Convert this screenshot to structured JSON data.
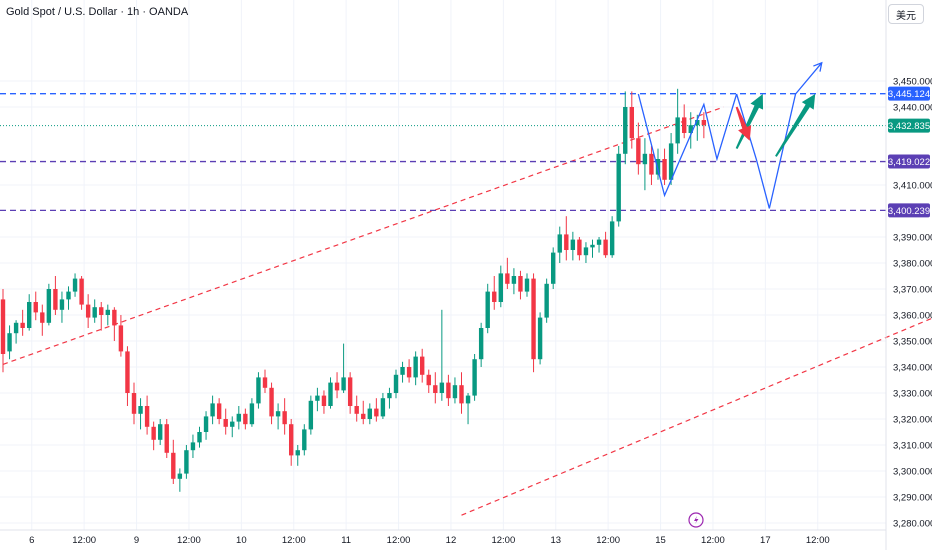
{
  "header": {
    "title": "Gold Spot / U.S. Dollar · 1h · OANDA",
    "currency_label": "美元"
  },
  "colors": {
    "up": "#089981",
    "down": "#f23645",
    "channel": "#f23645",
    "blue_level": "#2962ff",
    "purple_level": "#5b3fb4",
    "green_level": "#089981",
    "projection": "#2962ff",
    "arrow_up": "#089981",
    "arrow_down": "#f23645"
  },
  "chart_data": {
    "type": "candlestick",
    "title": "Gold Spot / U.S. Dollar · 1h · OANDA",
    "ylim": [
      3276,
      3464
    ],
    "y_ticks": [
      "3,280.000",
      "3,290.000",
      "3,300.000",
      "3,310.000",
      "3,320.000",
      "3,330.000",
      "3,340.000",
      "3,350.000",
      "3,360.000",
      "3,370.000",
      "3,380.000",
      "3,390.000",
      "3,410.000",
      "3,440.000",
      "3,450.000"
    ],
    "x_ticks": [
      "6",
      "12:00",
      "9",
      "12:00",
      "10",
      "12:00",
      "11",
      "12:00",
      "12",
      "12:00",
      "13",
      "12:00",
      "15",
      "12:00",
      "17",
      "12:00"
    ],
    "price_levels": [
      {
        "label": "3,445.124",
        "value": 3445.124,
        "style": "dashed",
        "color": "blue"
      },
      {
        "label": "3,432.835",
        "value": 3432.835,
        "style": "dotted",
        "color": "green"
      },
      {
        "label": "3,419.022",
        "value": 3419.022,
        "style": "dashed",
        "color": "purple"
      },
      {
        "label": "3,400.239",
        "value": 3400.239,
        "style": "dashed",
        "color": "purple"
      }
    ],
    "candles": [
      [
        3366,
        3370,
        3338,
        3345
      ],
      [
        3346,
        3356,
        3343,
        3353
      ],
      [
        3353,
        3358,
        3349,
        3357
      ],
      [
        3357,
        3362,
        3352,
        3355
      ],
      [
        3355,
        3368,
        3354,
        3365
      ],
      [
        3365,
        3369,
        3358,
        3361
      ],
      [
        3361,
        3364,
        3352,
        3357
      ],
      [
        3357,
        3372,
        3356,
        3370
      ],
      [
        3370,
        3375,
        3360,
        3362
      ],
      [
        3362,
        3369,
        3357,
        3366
      ],
      [
        3366,
        3371,
        3362,
        3369
      ],
      [
        3369,
        3376,
        3367,
        3374
      ],
      [
        3374,
        3375,
        3362,
        3364
      ],
      [
        3364,
        3368,
        3355,
        3359
      ],
      [
        3359,
        3366,
        3357,
        3363
      ],
      [
        3363,
        3365,
        3354,
        3360
      ],
      [
        3360,
        3364,
        3356,
        3362
      ],
      [
        3362,
        3363,
        3350,
        3356
      ],
      [
        3356,
        3360,
        3344,
        3346
      ],
      [
        3346,
        3348,
        3325,
        3330
      ],
      [
        3330,
        3334,
        3318,
        3322
      ],
      [
        3322,
        3328,
        3316,
        3325
      ],
      [
        3325,
        3329,
        3314,
        3317
      ],
      [
        3317,
        3319,
        3308,
        3312
      ],
      [
        3312,
        3320,
        3310,
        3318
      ],
      [
        3318,
        3320,
        3305,
        3307
      ],
      [
        3307,
        3312,
        3295,
        3297
      ],
      [
        3297,
        3301,
        3292,
        3299
      ],
      [
        3299,
        3310,
        3297,
        3308
      ],
      [
        3308,
        3314,
        3305,
        3311
      ],
      [
        3311,
        3317,
        3309,
        3315
      ],
      [
        3315,
        3323,
        3312,
        3321
      ],
      [
        3321,
        3329,
        3318,
        3326
      ],
      [
        3326,
        3328,
        3318,
        3320
      ],
      [
        3320,
        3324,
        3314,
        3317
      ],
      [
        3317,
        3321,
        3313,
        3319
      ],
      [
        3319,
        3325,
        3316,
        3322
      ],
      [
        3322,
        3324,
        3316,
        3318
      ],
      [
        3318,
        3328,
        3317,
        3326
      ],
      [
        3326,
        3338,
        3324,
        3336
      ],
      [
        3336,
        3339,
        3330,
        3332
      ],
      [
        3332,
        3334,
        3318,
        3321
      ],
      [
        3321,
        3326,
        3316,
        3323
      ],
      [
        3323,
        3328,
        3314,
        3318
      ],
      [
        3318,
        3320,
        3302,
        3306
      ],
      [
        3306,
        3310,
        3302,
        3308
      ],
      [
        3308,
        3318,
        3306,
        3316
      ],
      [
        3316,
        3329,
        3314,
        3327
      ],
      [
        3327,
        3332,
        3323,
        3329
      ],
      [
        3329,
        3331,
        3322,
        3325
      ],
      [
        3325,
        3336,
        3324,
        3334
      ],
      [
        3334,
        3338,
        3328,
        3331
      ],
      [
        3331,
        3349,
        3330,
        3336
      ],
      [
        3336,
        3338,
        3322,
        3325
      ],
      [
        3325,
        3329,
        3319,
        3322
      ],
      [
        3322,
        3327,
        3318,
        3320
      ],
      [
        3320,
        3326,
        3318,
        3324
      ],
      [
        3324,
        3328,
        3319,
        3321
      ],
      [
        3321,
        3330,
        3320,
        3328
      ],
      [
        3328,
        3332,
        3324,
        3330
      ],
      [
        3330,
        3339,
        3328,
        3337
      ],
      [
        3337,
        3342,
        3334,
        3340
      ],
      [
        3340,
        3343,
        3334,
        3336
      ],
      [
        3336,
        3346,
        3333,
        3344
      ],
      [
        3344,
        3347,
        3334,
        3337
      ],
      [
        3337,
        3339,
        3330,
        3333
      ],
      [
        3333,
        3338,
        3326,
        3330
      ],
      [
        3330,
        3362,
        3327,
        3334
      ],
      [
        3334,
        3337,
        3325,
        3328
      ],
      [
        3328,
        3336,
        3326,
        3333
      ],
      [
        3333,
        3338,
        3322,
        3326
      ],
      [
        3326,
        3330,
        3318,
        3329
      ],
      [
        3329,
        3345,
        3327,
        3343
      ],
      [
        3343,
        3357,
        3340,
        3355
      ],
      [
        3355,
        3372,
        3353,
        3369
      ],
      [
        3369,
        3375,
        3362,
        3365
      ],
      [
        3365,
        3379,
        3363,
        3376
      ],
      [
        3376,
        3382,
        3370,
        3372
      ],
      [
        3372,
        3378,
        3368,
        3375
      ],
      [
        3375,
        3377,
        3366,
        3369
      ],
      [
        3369,
        3376,
        3367,
        3374
      ],
      [
        3374,
        3376,
        3338,
        3343
      ],
      [
        3343,
        3361,
        3341,
        3359
      ],
      [
        3359,
        3374,
        3357,
        3372
      ],
      [
        3372,
        3386,
        3370,
        3384
      ],
      [
        3384,
        3394,
        3380,
        3391
      ],
      [
        3391,
        3398,
        3381,
        3385
      ],
      [
        3385,
        3392,
        3381,
        3389
      ],
      [
        3389,
        3390,
        3381,
        3383
      ],
      [
        3383,
        3388,
        3380,
        3386
      ],
      [
        3386,
        3389,
        3382,
        3387
      ],
      [
        3387,
        3390,
        3384,
        3389
      ],
      [
        3389,
        3392,
        3382,
        3383
      ],
      [
        3383,
        3398,
        3382,
        3396
      ],
      [
        3396,
        3425,
        3394,
        3422
      ],
      [
        3422,
        3446,
        3418,
        3440
      ],
      [
        3440,
        3446,
        3424,
        3428
      ],
      [
        3428,
        3434,
        3414,
        3418
      ],
      [
        3418,
        3428,
        3408,
        3422
      ],
      [
        3422,
        3425,
        3410,
        3414
      ],
      [
        3414,
        3424,
        3412,
        3420
      ],
      [
        3420,
        3424,
        3410,
        3412
      ],
      [
        3412,
        3430,
        3410,
        3426
      ],
      [
        3426,
        3447,
        3422,
        3436
      ],
      [
        3436,
        3441,
        3428,
        3430
      ],
      [
        3430,
        3438,
        3424,
        3433
      ],
      [
        3433,
        3437,
        3427,
        3435
      ],
      [
        3435,
        3438,
        3428,
        3433
      ]
    ],
    "channel_lines": [
      {
        "x1": 0,
        "y1": 3341,
        "x2": 110,
        "y2": 3440
      },
      {
        "x1": 70,
        "y1": 3283,
        "x2": 180,
        "y2": 3399
      }
    ],
    "projection_paths": [
      {
        "name": "zigzag-small",
        "points": [
          [
            97,
            3445
          ],
          [
            101,
            3406
          ],
          [
            107,
            3441
          ],
          [
            109,
            3420
          ],
          [
            112,
            3445
          ]
        ]
      },
      {
        "name": "zigzag-big",
        "points": [
          [
            112,
            3445
          ],
          [
            115,
            3420
          ],
          [
            117,
            3401
          ],
          [
            121,
            3445
          ],
          [
            125,
            3457
          ]
        ]
      }
    ],
    "arrows": [
      {
        "dir": "up",
        "from": [
          112,
          3424
        ],
        "to": [
          116,
          3445
        ]
      },
      {
        "dir": "down",
        "from": [
          112,
          3440
        ],
        "to": [
          114,
          3427
        ]
      },
      {
        "dir": "up",
        "from": [
          118,
          3421
        ],
        "to": [
          124,
          3445
        ]
      }
    ]
  }
}
